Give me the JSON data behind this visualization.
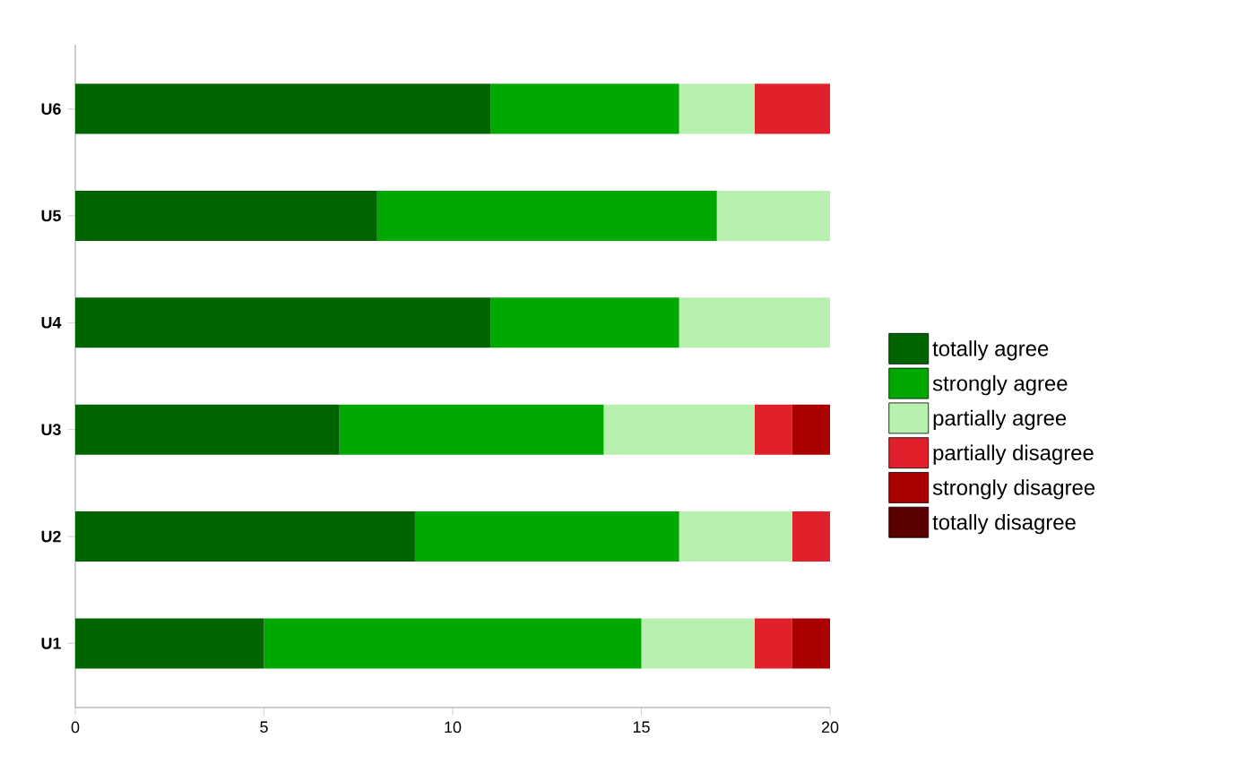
{
  "chart_data": {
    "type": "bar",
    "orientation": "horizontal",
    "stacked": true,
    "categories": [
      "U6",
      "U5",
      "U4",
      "U3",
      "U2",
      "U1"
    ],
    "series": [
      {
        "name": "totally agree",
        "color": "#006400",
        "values": [
          11,
          8,
          11,
          7,
          9,
          5
        ]
      },
      {
        "name": "strongly agree",
        "color": "#00a800",
        "values": [
          5,
          9,
          5,
          7,
          7,
          10
        ]
      },
      {
        "name": "partially agree",
        "color": "#b8f0b0",
        "values": [
          2,
          3,
          4,
          4,
          3,
          3
        ]
      },
      {
        "name": "partially disagree",
        "color": "#e0202a",
        "values": [
          2,
          0,
          0,
          1,
          1,
          1
        ]
      },
      {
        "name": "strongly disagree",
        "color": "#aa0000",
        "values": [
          0,
          0,
          0,
          1,
          0,
          1
        ]
      },
      {
        "name": "totally disagree",
        "color": "#5a0000",
        "values": [
          0,
          0,
          0,
          0,
          0,
          0
        ]
      }
    ],
    "xlim": [
      0,
      20
    ],
    "xticks": [
      0,
      5,
      10,
      15,
      20
    ],
    "grid": false,
    "legend": "right"
  }
}
